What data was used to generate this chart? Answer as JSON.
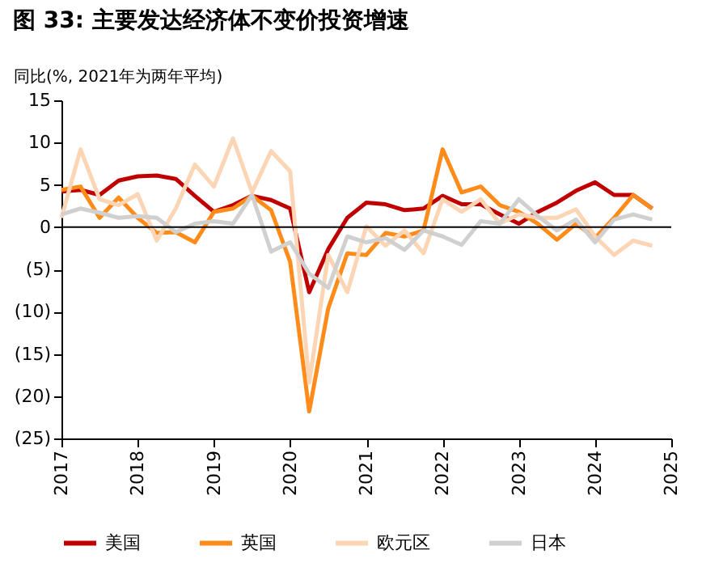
{
  "chart_data": {
    "type": "line",
    "title": "图 33: 主要发达经济体不变价投资增速",
    "ylabel": "同比(%, 2021年为两年平均)",
    "x": [
      2017.0,
      2017.25,
      2017.5,
      2017.75,
      2018.0,
      2018.25,
      2018.5,
      2018.75,
      2019.0,
      2019.25,
      2019.5,
      2019.75,
      2020.0,
      2020.25,
      2020.5,
      2020.75,
      2021.0,
      2021.25,
      2021.5,
      2021.75,
      2022.0,
      2022.25,
      2022.5,
      2022.75,
      2023.0,
      2023.25,
      2023.5,
      2023.75,
      2024.0,
      2024.25,
      2024.5,
      2024.75
    ],
    "series": [
      {
        "name": "美国",
        "color": "#c00000",
        "values": [
          4.2,
          4.4,
          3.8,
          5.5,
          6.0,
          6.1,
          5.7,
          3.7,
          1.8,
          2.6,
          3.7,
          3.2,
          2.2,
          -7.7,
          -2.6,
          1.1,
          2.9,
          2.7,
          2.0,
          2.2,
          3.7,
          2.7,
          2.7,
          1.5,
          0.4,
          1.8,
          2.9,
          4.3,
          5.3,
          3.8,
          3.8,
          2.2
        ]
      },
      {
        "name": "英国",
        "color": "#ff8c1a",
        "values": [
          4.4,
          4.8,
          1.1,
          3.5,
          1.1,
          -0.7,
          -0.6,
          -1.8,
          1.8,
          2.2,
          3.7,
          2.0,
          -4.1,
          -21.8,
          -9.6,
          -3.1,
          -3.3,
          -0.7,
          -1.1,
          -0.4,
          9.2,
          4.1,
          4.8,
          2.6,
          1.8,
          0.4,
          -1.5,
          0.4,
          -1.3,
          1.1,
          3.8,
          2.2
        ]
      },
      {
        "name": "欧元区",
        "color": "#fcd5b5",
        "values": [
          1.1,
          9.2,
          3.3,
          2.6,
          3.9,
          -1.6,
          2.2,
          7.4,
          4.8,
          10.5,
          4.1,
          9.0,
          6.6,
          -18.4,
          -3.3,
          -7.7,
          0.1,
          -2.2,
          -0.4,
          -3.1,
          3.3,
          1.8,
          3.3,
          0.4,
          1.5,
          1.1,
          1.1,
          2.1,
          -1.1,
          -3.3,
          -1.6,
          -2.2
        ]
      },
      {
        "name": "日本",
        "color": "#d0d0d0",
        "values": [
          1.5,
          2.2,
          1.7,
          1.1,
          1.3,
          1.1,
          -0.6,
          0.4,
          0.7,
          0.4,
          3.8,
          -2.9,
          -1.8,
          -5.5,
          -7.2,
          -1.1,
          -1.8,
          -1.3,
          -2.7,
          -0.4,
          -1.1,
          -2.1,
          0.7,
          0.4,
          3.3,
          1.3,
          -0.4,
          0.9,
          -1.8,
          0.9,
          1.5,
          0.9
        ]
      }
    ],
    "xlim": [
      2017,
      2025
    ],
    "xticks": [
      2017,
      2018,
      2019,
      2020,
      2021,
      2022,
      2023,
      2024,
      2025
    ],
    "ylim": [
      -25,
      15
    ],
    "yticks": [
      15,
      10,
      5,
      0,
      {
        "value": -5,
        "label": "(5)"
      },
      {
        "value": -10,
        "label": "(10)"
      },
      {
        "value": -15,
        "label": "(15)"
      },
      {
        "value": -20,
        "label": "(20)"
      },
      {
        "value": -25,
        "label": "(25)"
      }
    ],
    "ref_lines": [
      {
        "axis": "y",
        "value": 0,
        "color": "#000000",
        "line_style": "solid"
      }
    ],
    "grid": false,
    "legend": "bottom",
    "marker": "none",
    "line_style": "solid"
  }
}
